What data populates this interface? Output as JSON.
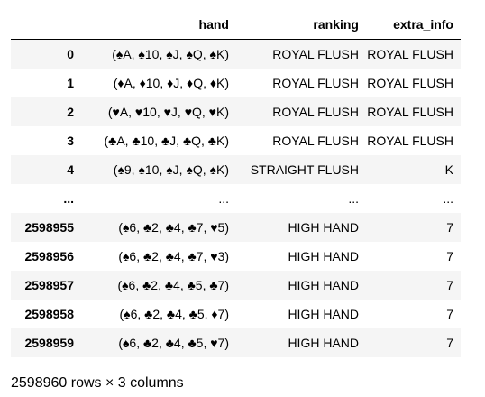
{
  "table": {
    "columns": [
      "",
      "hand",
      "ranking",
      "extra_info"
    ],
    "rows": [
      {
        "index": "0",
        "hand": "(♠A, ♠10, ♠J, ♠Q, ♠K)",
        "ranking": "ROYAL FLUSH",
        "extra_info": "ROYAL FLUSH"
      },
      {
        "index": "1",
        "hand": "(♦A, ♦10, ♦J, ♦Q, ♦K)",
        "ranking": "ROYAL FLUSH",
        "extra_info": "ROYAL FLUSH"
      },
      {
        "index": "2",
        "hand": "(♥A, ♥10, ♥J, ♥Q, ♥K)",
        "ranking": "ROYAL FLUSH",
        "extra_info": "ROYAL FLUSH"
      },
      {
        "index": "3",
        "hand": "(♣A, ♣10, ♣J, ♣Q, ♣K)",
        "ranking": "ROYAL FLUSH",
        "extra_info": "ROYAL FLUSH"
      },
      {
        "index": "4",
        "hand": "(♠9, ♠10, ♠J, ♠Q, ♠K)",
        "ranking": "STRAIGHT FLUSH",
        "extra_info": "K"
      },
      {
        "index": "...",
        "hand": "...",
        "ranking": "...",
        "extra_info": "..."
      },
      {
        "index": "2598955",
        "hand": "(♠6, ♣2, ♣4, ♣7, ♥5)",
        "ranking": "HIGH HAND",
        "extra_info": "7"
      },
      {
        "index": "2598956",
        "hand": "(♠6, ♣2, ♣4, ♣7, ♥3)",
        "ranking": "HIGH HAND",
        "extra_info": "7"
      },
      {
        "index": "2598957",
        "hand": "(♠6, ♣2, ♣4, ♣5, ♣7)",
        "ranking": "HIGH HAND",
        "extra_info": "7"
      },
      {
        "index": "2598958",
        "hand": "(♠6, ♣2, ♣4, ♣5, ♦7)",
        "ranking": "HIGH HAND",
        "extra_info": "7"
      },
      {
        "index": "2598959",
        "hand": "(♠6, ♣2, ♣4, ♣5, ♥7)",
        "ranking": "HIGH HAND",
        "extra_info": "7"
      }
    ]
  },
  "footer": {
    "shape_text": "2598960 rows × 3 columns"
  },
  "colors": {
    "stripe": "#f5f5f5",
    "header_border": "#000000",
    "text": "#000000"
  }
}
